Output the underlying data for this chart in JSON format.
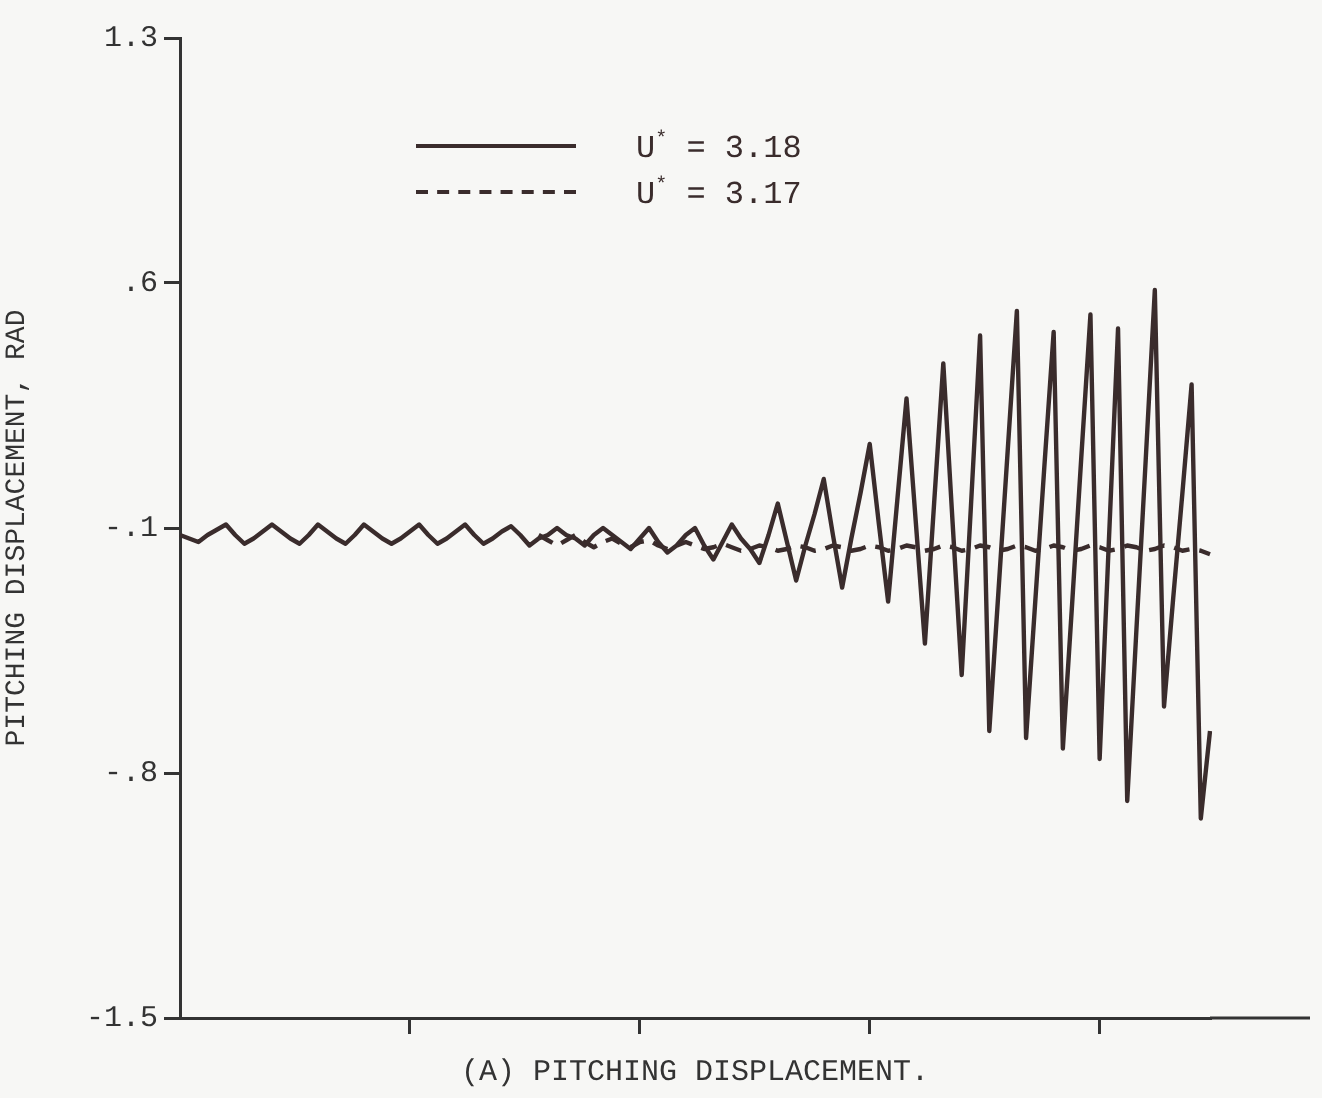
{
  "chart_data": {
    "type": "line",
    "xlabel": "(A) PITCHING DISPLACEMENT.",
    "ylabel": "PITCHING DISPLACEMENT, RAD",
    "categories": [
      null,
      null,
      null,
      null,
      null,
      null,
      null,
      null,
      null,
      null,
      null,
      null,
      null,
      null,
      null,
      null,
      null,
      null,
      null,
      null,
      null,
      null,
      null,
      null,
      null,
      null,
      null,
      null,
      null,
      null,
      null,
      null,
      null,
      null,
      null,
      null,
      null,
      null,
      null,
      null,
      null,
      null,
      null,
      null,
      null,
      null,
      null,
      null,
      null,
      null,
      null,
      null,
      null,
      null,
      null,
      null,
      null,
      null,
      null,
      null,
      null,
      null,
      null,
      null,
      null,
      null,
      null,
      null,
      null,
      null,
      null,
      null,
      null,
      null,
      null,
      null,
      null,
      null,
      null,
      null,
      null,
      null,
      null,
      null,
      null,
      null,
      null,
      null,
      null,
      null,
      null,
      null,
      null,
      null,
      null,
      null,
      null,
      null,
      null,
      null,
      null,
      null,
      null,
      null,
      null,
      null,
      null,
      null,
      null,
      null,
      null,
      null,
      null
    ],
    "ylim": [
      -1.5,
      1.3
    ],
    "yticks": [
      {
        "value": -1.5,
        "label": "-1.5"
      },
      {
        "value": -0.8,
        "label": "-.8"
      },
      {
        "value": -0.1,
        "label": "-.1"
      },
      {
        "value": 0.6,
        "label": ".6"
      },
      {
        "value": 1.3,
        "label": "1.3"
      }
    ],
    "tick_labels": "y",
    "grid": false,
    "legend": "top left",
    "marker": "none",
    "series": [
      {
        "name": "U$^{*}$ = 3.18",
        "color": "#3a2c2c",
        "line_style": "solid",
        "values": [
          -0.12,
          -0.13,
          -0.14,
          -0.12,
          -0.105,
          -0.09,
          -0.12,
          -0.145,
          -0.13,
          -0.11,
          -0.09,
          -0.11,
          -0.13,
          -0.145,
          -0.12,
          -0.09,
          -0.11,
          -0.13,
          -0.145,
          -0.12,
          -0.09,
          -0.11,
          -0.13,
          -0.145,
          -0.13,
          -0.11,
          -0.09,
          -0.12,
          -0.145,
          -0.13,
          -0.11,
          -0.09,
          -0.12,
          -0.145,
          -0.13,
          -0.11,
          -0.095,
          -0.12,
          -0.15,
          -0.13,
          -0.12,
          -0.1,
          -0.12,
          -0.13,
          -0.15,
          -0.12,
          -0.1,
          -0.12,
          -0.14,
          -0.16,
          -0.13,
          -0.1,
          -0.14,
          -0.17,
          -0.15,
          -0.12,
          -0.1,
          -0.15,
          -0.19,
          -0.14,
          -0.09,
          -0.13,
          -0.16,
          -0.2,
          -0.12,
          -0.03,
          -0.14,
          -0.25,
          -0.15,
          -0.06,
          0.04,
          -0.12,
          -0.27,
          -0.13,
          0.0,
          0.14,
          -0.09,
          -0.31,
          -0.02,
          0.27,
          -0.08,
          -0.43,
          -0.03,
          0.37,
          -0.08,
          -0.52,
          -0.04,
          0.45,
          -0.68,
          -0.28,
          0.12,
          0.52,
          -0.7,
          -0.31,
          0.08,
          0.46,
          -0.73,
          -0.32,
          0.1,
          0.51,
          -0.76,
          -0.14,
          0.47,
          -0.88,
          -0.39,
          0.09,
          0.58,
          -0.61,
          -0.3,
          0.0,
          0.31,
          -0.93,
          -0.68
        ]
      },
      {
        "name": "U$^{*}$ = 3.17",
        "color": "#3a2c2c",
        "line_style": "dashed",
        "values": [
          null,
          null,
          null,
          null,
          null,
          null,
          null,
          null,
          null,
          null,
          null,
          null,
          null,
          null,
          null,
          null,
          null,
          null,
          null,
          null,
          null,
          null,
          null,
          null,
          null,
          null,
          null,
          null,
          null,
          null,
          null,
          null,
          null,
          null,
          null,
          null,
          null,
          null,
          null,
          -0.12,
          -0.135,
          -0.15,
          -0.135,
          -0.12,
          -0.14,
          -0.155,
          -0.14,
          -0.13,
          -0.145,
          -0.155,
          -0.14,
          -0.135,
          -0.15,
          -0.16,
          -0.15,
          -0.14,
          -0.15,
          -0.16,
          -0.155,
          -0.145,
          -0.155,
          -0.165,
          -0.16,
          -0.15,
          -0.155,
          -0.165,
          -0.16,
          -0.15,
          -0.155,
          -0.165,
          -0.16,
          -0.15,
          -0.155,
          -0.165,
          -0.16,
          -0.15,
          -0.155,
          -0.165,
          -0.16,
          -0.15,
          -0.155,
          -0.165,
          -0.16,
          -0.15,
          -0.155,
          -0.165,
          -0.16,
          -0.15,
          -0.155,
          -0.165,
          -0.16,
          -0.15,
          -0.155,
          -0.165,
          -0.16,
          -0.15,
          -0.155,
          -0.165,
          -0.16,
          -0.15,
          -0.155,
          -0.165,
          -0.16,
          -0.15,
          -0.155,
          -0.165,
          -0.16,
          -0.15,
          -0.155,
          -0.165,
          -0.16,
          -0.165,
          -0.175
        ]
      }
    ]
  }
}
